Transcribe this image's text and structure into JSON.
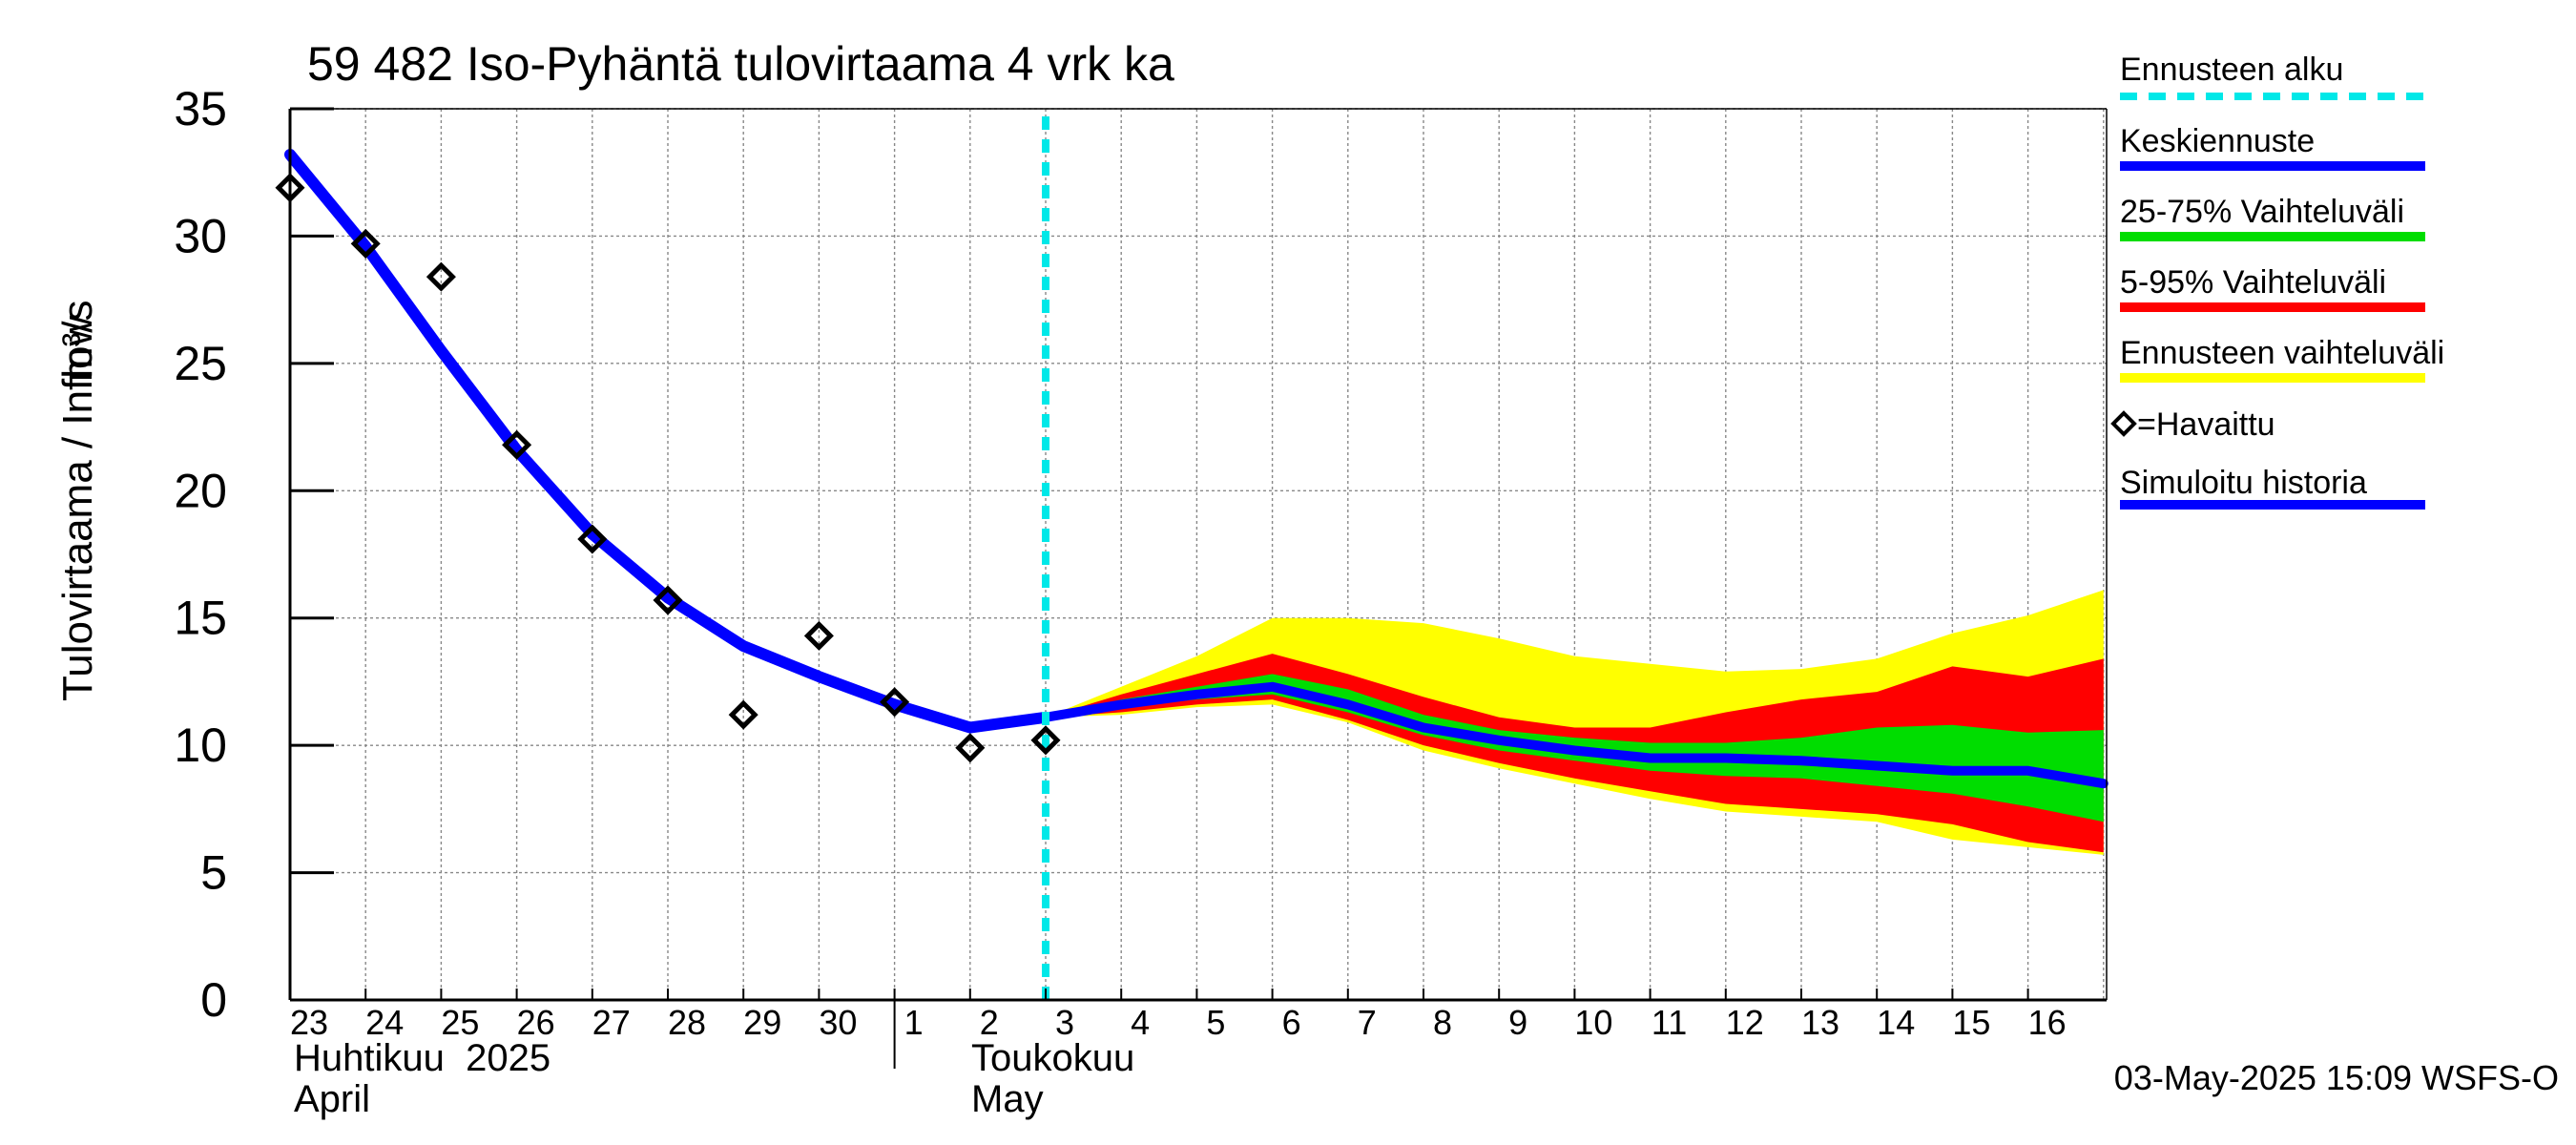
{
  "chart_data": {
    "type": "line",
    "title": "59 482 Iso-Pyhäntä tulovirtaama 4 vrk ka",
    "ylabel": "Tulovirtaama / Inflow",
    "yunit": "m³/s",
    "ylim": [
      0,
      35
    ],
    "yticks": [
      0,
      5,
      10,
      15,
      20,
      25,
      30,
      35
    ],
    "grid": true,
    "legend_position": "right",
    "x_day_labels": [
      "23",
      "24",
      "25",
      "26",
      "27",
      "28",
      "29",
      "30",
      "1",
      "2",
      "3",
      "4",
      "5",
      "6",
      "7",
      "8",
      "9",
      "10",
      "11",
      "12",
      "13",
      "14",
      "15",
      "16"
    ],
    "x_month_labels": [
      {
        "fi": "Huhtikuu  2025",
        "en": "April"
      },
      {
        "fi": "Toukokuu",
        "en": "May"
      }
    ],
    "forecast_start": "2025-05-03",
    "simulated_history": {
      "dates": [
        "2025-04-23",
        "2025-04-24",
        "2025-04-25",
        "2025-04-26",
        "2025-04-27",
        "2025-04-28",
        "2025-04-29",
        "2025-04-30",
        "2025-05-01",
        "2025-05-02",
        "2025-05-03"
      ],
      "values": [
        33.2,
        29.6,
        25.5,
        21.6,
        18.3,
        15.8,
        13.9,
        12.7,
        11.6,
        10.7,
        11.1
      ]
    },
    "observed": {
      "dates": [
        "2025-04-23",
        "2025-04-24",
        "2025-04-25",
        "2025-04-26",
        "2025-04-27",
        "2025-04-28",
        "2025-04-29",
        "2025-04-30",
        "2025-05-01",
        "2025-05-02",
        "2025-05-03"
      ],
      "values": [
        31.9,
        29.7,
        28.4,
        21.8,
        18.1,
        15.7,
        11.2,
        14.3,
        11.7,
        9.9,
        10.2
      ]
    },
    "forecast": {
      "dates": [
        "2025-05-03",
        "2025-05-04",
        "2025-05-05",
        "2025-05-06",
        "2025-05-07",
        "2025-05-08",
        "2025-05-09",
        "2025-05-10",
        "2025-05-11",
        "2025-05-12",
        "2025-05-13",
        "2025-05-14",
        "2025-05-15",
        "2025-05-16",
        "2025-05-17"
      ],
      "median": [
        11.1,
        11.6,
        12.0,
        12.3,
        11.6,
        10.7,
        10.2,
        9.8,
        9.5,
        9.5,
        9.4,
        9.2,
        9.0,
        9.0,
        8.5
      ],
      "p25": [
        11.1,
        11.5,
        11.8,
        12.0,
        11.3,
        10.4,
        9.8,
        9.4,
        9.0,
        8.8,
        8.7,
        8.4,
        8.1,
        7.6,
        7.0
      ],
      "p75": [
        11.1,
        11.8,
        12.3,
        12.8,
        12.2,
        11.2,
        10.6,
        10.3,
        10.1,
        10.1,
        10.3,
        10.7,
        10.8,
        10.5,
        10.6
      ],
      "p5": [
        11.1,
        11.3,
        11.6,
        11.8,
        11.0,
        10.0,
        9.3,
        8.7,
        8.2,
        7.7,
        7.5,
        7.3,
        6.9,
        6.2,
        5.8
      ],
      "p95": [
        11.1,
        12.0,
        12.8,
        13.6,
        12.8,
        11.9,
        11.1,
        10.7,
        10.7,
        11.3,
        11.8,
        12.1,
        13.1,
        12.7,
        13.4
      ],
      "min": [
        11.1,
        11.2,
        11.5,
        11.6,
        10.9,
        9.8,
        9.1,
        8.5,
        7.9,
        7.4,
        7.2,
        7.0,
        6.3,
        6.0,
        5.7
      ],
      "max": [
        11.1,
        12.3,
        13.5,
        15.0,
        15.0,
        14.8,
        14.2,
        13.5,
        13.2,
        12.9,
        13.0,
        13.4,
        14.4,
        15.1,
        16.1
      ]
    }
  },
  "legend": {
    "items": [
      {
        "label": "Ennusteen alku",
        "color": "#00e8e8",
        "style": "dashed"
      },
      {
        "label": "Keskiennuste",
        "color": "#0000ff",
        "style": "line"
      },
      {
        "label": "25-75% Vaihteluväli",
        "color": "#00dd00",
        "style": "line"
      },
      {
        "label": "5-95% Vaihteluväli",
        "color": "#ff0000",
        "style": "line"
      },
      {
        "label": "Ennusteen vaihteluväli",
        "color": "#ffff00",
        "style": "line"
      },
      {
        "label": "=Havaittu",
        "color": "#000000",
        "style": "marker"
      },
      {
        "label": "Simuloitu historia",
        "color": "#0000ff",
        "style": "line"
      }
    ]
  },
  "footer": {
    "timestamp": "03-May-2025 15:09 WSFS-O"
  }
}
